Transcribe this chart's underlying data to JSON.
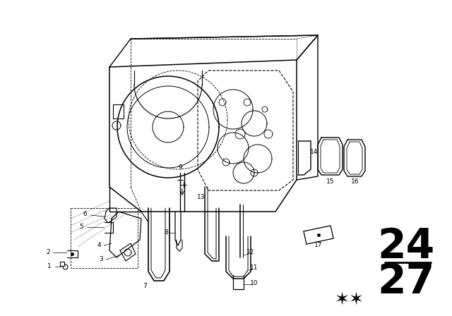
{
  "bg_color": "#ffffff",
  "number_top": "24",
  "number_bottom": "27",
  "fig_width": 6.4,
  "fig_height": 4.48,
  "dpi": 100
}
